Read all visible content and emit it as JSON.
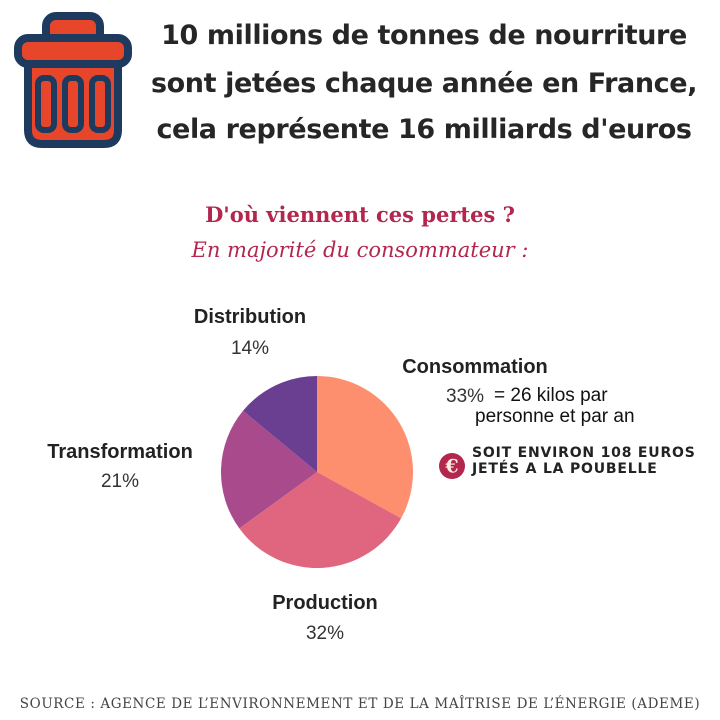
{
  "header": {
    "icon": "trash-can-icon",
    "lines": [
      "10 millions de tonnes de nourriture",
      "sont jetées chaque année en France,",
      "cela représente 16 milliards d'euros"
    ]
  },
  "subtitle": {
    "question": "D'où viennent ces pertes ?",
    "answer": "En majorité du consommateur :"
  },
  "chart_data": {
    "type": "pie",
    "title": "D'où viennent ces pertes ?",
    "subtitle": "En majorité du consommateur :",
    "start_angle_deg": 0,
    "direction": "clockwise",
    "slices": [
      {
        "label": "Consommation",
        "value": 33,
        "display": "33%",
        "color": "#fd8f6f"
      },
      {
        "label": "Production",
        "value": 32,
        "display": "32%",
        "color": "#e0667f"
      },
      {
        "label": "Transformation",
        "value": 21,
        "display": "21%",
        "color": "#a94a8c"
      },
      {
        "label": "Distribution",
        "value": 14,
        "display": "14%",
        "color": "#6a3f91"
      }
    ],
    "annotations": {
      "consommation_detail": [
        "= 26 kilos par",
        "personne et par an"
      ],
      "euro_note": [
        "SOIT ENVIRON 108 EUROS",
        "JETÉS A LA POUBELLE"
      ]
    }
  },
  "euro_callout": {
    "icon": "euro-coin-icon",
    "line1": "SOIT ENVIRON 108 EUROS",
    "line2": "JETÉS A LA POUBELLE"
  },
  "footer": {
    "source": "SOURCE : AGENCE DE L’ENVIRONNEMENT ET DE LA MAÎTRISE DE L’ÉNERGIE (ADEME)"
  },
  "colors": {
    "title_text": "#262626",
    "accent": "#b3264e",
    "trash_fill": "#e8462b",
    "trash_outline": "#1f3a5f"
  }
}
